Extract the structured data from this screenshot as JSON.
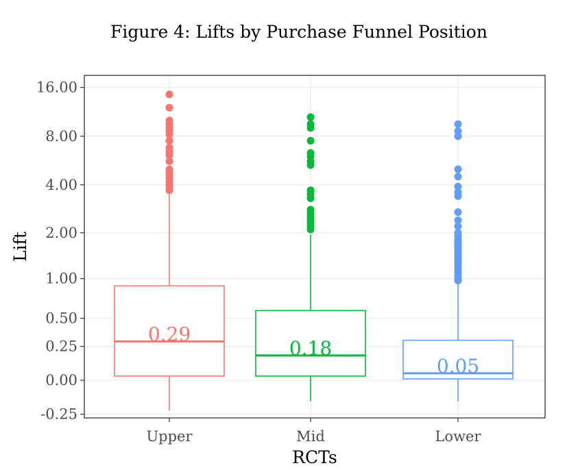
{
  "chart_data": {
    "type": "boxplot",
    "title": "Figure 4: Lifts by Purchase Funnel Position",
    "xlabel": "RCTs",
    "ylabel": "Lift",
    "scale": "pseudo-log (asinh)",
    "y_ticks": [
      {
        "value": -0.25,
        "label": "-0.25"
      },
      {
        "value": 0.0,
        "label": "0.00"
      },
      {
        "value": 0.25,
        "label": "0.25"
      },
      {
        "value": 0.5,
        "label": "0.50"
      },
      {
        "value": 1.0,
        "label": "1.00"
      },
      {
        "value": 2.0,
        "label": "2.00"
      },
      {
        "value": 4.0,
        "label": "4.00"
      },
      {
        "value": 8.0,
        "label": "8.00"
      },
      {
        "value": 16.0,
        "label": "16.00"
      }
    ],
    "ylim": [
      -0.28,
      19
    ],
    "grid": true,
    "legend": "none",
    "groups": [
      {
        "category": "Upper",
        "color": "#F8766D",
        "median": 0.29,
        "median_label": "0.29",
        "q1": 0.03,
        "q3": 0.89,
        "whisker_low": -0.22,
        "whisker_high": 3.5,
        "outliers": [
          14.5,
          12.0,
          10.0,
          9.5,
          9.0,
          8.6,
          8.2,
          7.5,
          6.8,
          6.4,
          6.1,
          5.6,
          5.0,
          4.8,
          4.6,
          4.4,
          4.2,
          4.0,
          3.9,
          3.7
        ]
      },
      {
        "category": "Mid",
        "color": "#00BA38",
        "median": 0.18,
        "median_label": "0.18",
        "q1": 0.03,
        "q3": 0.58,
        "whisker_low": -0.15,
        "whisker_high": 1.95,
        "outliers": [
          10.5,
          9.5,
          9.0,
          7.5,
          6.3,
          6.0,
          5.6,
          5.3,
          3.7,
          3.5,
          3.3,
          2.8,
          2.65,
          2.5,
          2.4,
          2.3,
          2.2,
          2.1
        ]
      },
      {
        "category": "Lower",
        "color": "#619CFF",
        "median": 0.05,
        "median_label": "0.05",
        "q1": 0.01,
        "q3": 0.3,
        "whisker_low": -0.15,
        "whisker_high": 0.95,
        "outliers": [
          9.5,
          8.6,
          8.0,
          5.0,
          4.5,
          3.9,
          3.6,
          3.4,
          2.7,
          2.4,
          2.2,
          2.0,
          1.9,
          1.8,
          1.75,
          1.7,
          1.65,
          1.6,
          1.55,
          1.5,
          1.45,
          1.4,
          1.35,
          1.3,
          1.25,
          1.2,
          1.15,
          1.1,
          1.05,
          1.0,
          0.97
        ]
      }
    ]
  }
}
